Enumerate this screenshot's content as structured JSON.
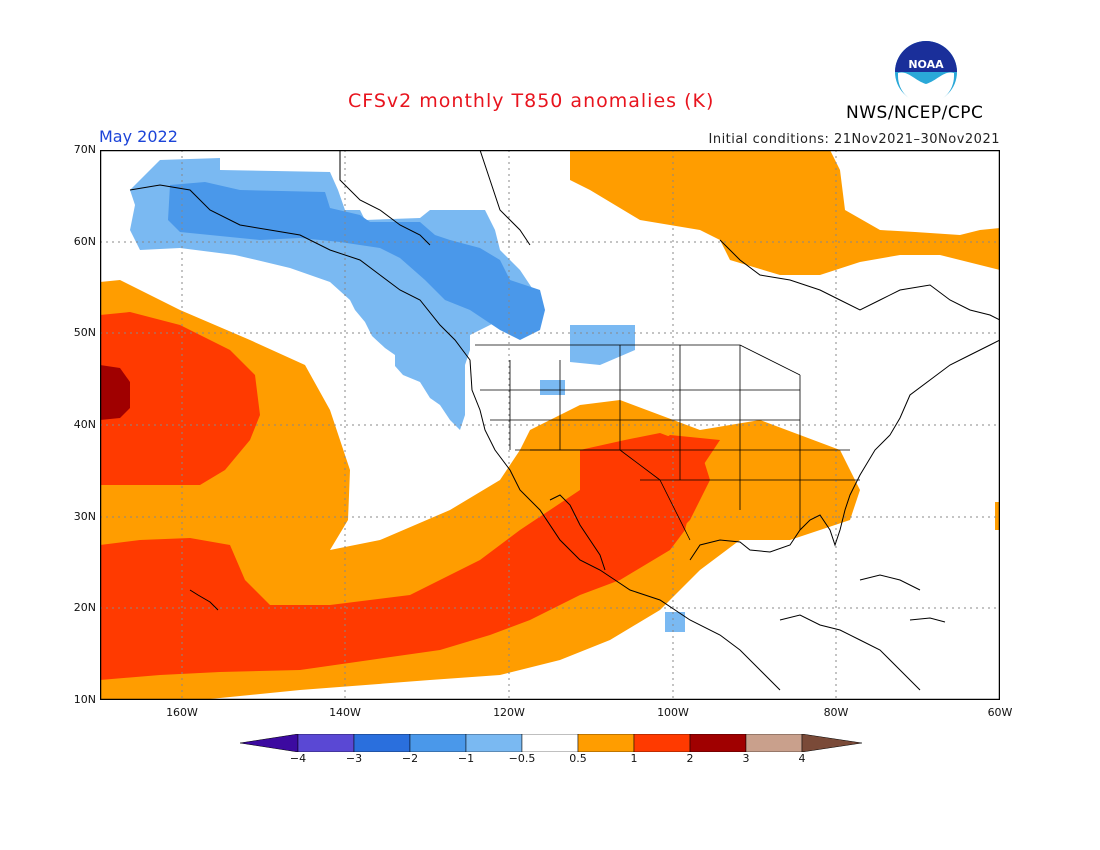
{
  "header": {
    "title": "CFSv2 monthly T850 anomalies (K)",
    "month": "May 2022",
    "initial_conditions": "Initial conditions: 21Nov2021–30Nov2021",
    "agency": "NWS/NCEP/CPC",
    "logo_text": "NOAA"
  },
  "map": {
    "lon_range": [
      -170,
      -60
    ],
    "lat_range": [
      10,
      70
    ],
    "lat_labels": [
      "70N",
      "60N",
      "50N",
      "40N",
      "30N",
      "20N",
      "10N"
    ],
    "lon_labels": [
      "160W",
      "140W",
      "120W",
      "100W",
      "80W",
      "60W"
    ]
  },
  "legend": {
    "labels": [
      "−4",
      "−3",
      "−2",
      "−1",
      "−0.5",
      "0.5",
      "1",
      "2",
      "3",
      "4"
    ],
    "colors": [
      "#3c0aa0",
      "#5a48d4",
      "#2a6fdd",
      "#4a98ea",
      "#7ab9f2",
      "#ffffff",
      "#ff9d00",
      "#ff3a00",
      "#a00000",
      "#c9a08c",
      "#7a4a38"
    ]
  },
  "colors": {
    "title": "#e8141e",
    "month": "#1c44d8",
    "blue_light": "#7ab9f2",
    "blue_mid": "#4a98ea",
    "orange": "#ff9d00",
    "red_orange": "#ff3a00",
    "dark_red": "#a00000"
  }
}
